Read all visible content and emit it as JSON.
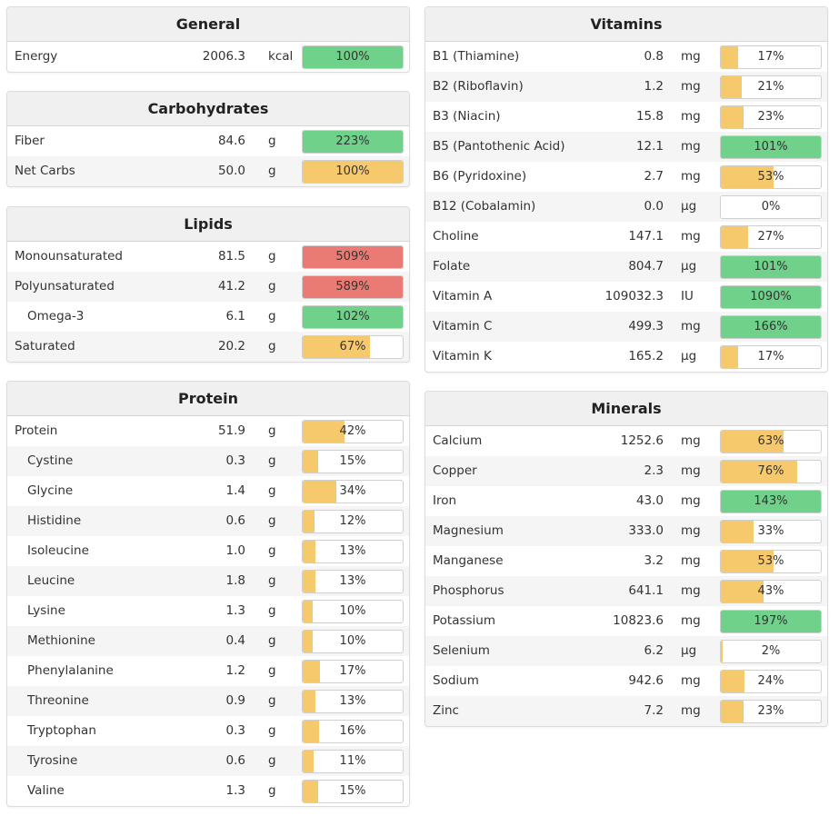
{
  "colors": {
    "green": "#6fd18a",
    "yellow": "#f7c96d",
    "red": "#ea7b74"
  },
  "general": {
    "title": "General",
    "rows": [
      {
        "name": "Energy",
        "amount": "2006.3",
        "unit": "kcal",
        "pct_label": "100%",
        "fill": 1.0,
        "color": "green"
      }
    ]
  },
  "carbohydrates": {
    "title": "Carbohydrates",
    "rows": [
      {
        "name": "Fiber",
        "amount": "84.6",
        "unit": "g",
        "pct_label": "223%",
        "fill": 1.0,
        "color": "green"
      },
      {
        "name": "Net Carbs",
        "amount": "50.0",
        "unit": "g",
        "pct_label": "100%",
        "fill": 1.0,
        "color": "yellow"
      }
    ]
  },
  "lipids": {
    "title": "Lipids",
    "rows": [
      {
        "name": "Monounsaturated",
        "amount": "81.5",
        "unit": "g",
        "pct_label": "509%",
        "fill": 1.0,
        "color": "red"
      },
      {
        "name": "Polyunsaturated",
        "amount": "41.2",
        "unit": "g",
        "pct_label": "589%",
        "fill": 1.0,
        "color": "red"
      },
      {
        "name": "Omega-3",
        "amount": "6.1",
        "unit": "g",
        "pct_label": "102%",
        "fill": 1.0,
        "color": "green",
        "indent": true
      },
      {
        "name": "Saturated",
        "amount": "20.2",
        "unit": "g",
        "pct_label": "67%",
        "fill": 0.67,
        "color": "yellow"
      }
    ]
  },
  "protein": {
    "title": "Protein",
    "rows": [
      {
        "name": "Protein",
        "amount": "51.9",
        "unit": "g",
        "pct_label": "42%",
        "fill": 0.42,
        "color": "yellow"
      },
      {
        "name": "Cystine",
        "amount": "0.3",
        "unit": "g",
        "pct_label": "15%",
        "fill": 0.15,
        "color": "yellow",
        "indent": true
      },
      {
        "name": "Glycine",
        "amount": "1.4",
        "unit": "g",
        "pct_label": "34%",
        "fill": 0.34,
        "color": "yellow",
        "indent": true
      },
      {
        "name": "Histidine",
        "amount": "0.6",
        "unit": "g",
        "pct_label": "12%",
        "fill": 0.12,
        "color": "yellow",
        "indent": true
      },
      {
        "name": "Isoleucine",
        "amount": "1.0",
        "unit": "g",
        "pct_label": "13%",
        "fill": 0.13,
        "color": "yellow",
        "indent": true
      },
      {
        "name": "Leucine",
        "amount": "1.8",
        "unit": "g",
        "pct_label": "13%",
        "fill": 0.13,
        "color": "yellow",
        "indent": true
      },
      {
        "name": "Lysine",
        "amount": "1.3",
        "unit": "g",
        "pct_label": "10%",
        "fill": 0.1,
        "color": "yellow",
        "indent": true
      },
      {
        "name": "Methionine",
        "amount": "0.4",
        "unit": "g",
        "pct_label": "10%",
        "fill": 0.1,
        "color": "yellow",
        "indent": true
      },
      {
        "name": "Phenylalanine",
        "amount": "1.2",
        "unit": "g",
        "pct_label": "17%",
        "fill": 0.17,
        "color": "yellow",
        "indent": true
      },
      {
        "name": "Threonine",
        "amount": "0.9",
        "unit": "g",
        "pct_label": "13%",
        "fill": 0.13,
        "color": "yellow",
        "indent": true
      },
      {
        "name": "Tryptophan",
        "amount": "0.3",
        "unit": "g",
        "pct_label": "16%",
        "fill": 0.16,
        "color": "yellow",
        "indent": true
      },
      {
        "name": "Tyrosine",
        "amount": "0.6",
        "unit": "g",
        "pct_label": "11%",
        "fill": 0.11,
        "color": "yellow",
        "indent": true
      },
      {
        "name": "Valine",
        "amount": "1.3",
        "unit": "g",
        "pct_label": "15%",
        "fill": 0.15,
        "color": "yellow",
        "indent": true
      }
    ]
  },
  "vitamins": {
    "title": "Vitamins",
    "rows": [
      {
        "name": "B1 (Thiamine)",
        "amount": "0.8",
        "unit": "mg",
        "pct_label": "17%",
        "fill": 0.17,
        "color": "yellow"
      },
      {
        "name": "B2 (Riboflavin)",
        "amount": "1.2",
        "unit": "mg",
        "pct_label": "21%",
        "fill": 0.21,
        "color": "yellow"
      },
      {
        "name": "B3 (Niacin)",
        "amount": "15.8",
        "unit": "mg",
        "pct_label": "23%",
        "fill": 0.23,
        "color": "yellow"
      },
      {
        "name": "B5 (Pantothenic Acid)",
        "amount": "12.1",
        "unit": "mg",
        "pct_label": "101%",
        "fill": 1.0,
        "color": "green"
      },
      {
        "name": "B6 (Pyridoxine)",
        "amount": "2.7",
        "unit": "mg",
        "pct_label": "53%",
        "fill": 0.53,
        "color": "yellow"
      },
      {
        "name": "B12 (Cobalamin)",
        "amount": "0.0",
        "unit": "µg",
        "pct_label": "0%",
        "fill": 0.0,
        "color": "yellow"
      },
      {
        "name": "Choline",
        "amount": "147.1",
        "unit": "mg",
        "pct_label": "27%",
        "fill": 0.27,
        "color": "yellow"
      },
      {
        "name": "Folate",
        "amount": "804.7",
        "unit": "µg",
        "pct_label": "101%",
        "fill": 1.0,
        "color": "green"
      },
      {
        "name": "Vitamin A",
        "amount": "109032.3",
        "unit": "IU",
        "pct_label": "1090%",
        "fill": 1.0,
        "color": "green"
      },
      {
        "name": "Vitamin C",
        "amount": "499.3",
        "unit": "mg",
        "pct_label": "166%",
        "fill": 1.0,
        "color": "green"
      },
      {
        "name": "Vitamin K",
        "amount": "165.2",
        "unit": "µg",
        "pct_label": "17%",
        "fill": 0.17,
        "color": "yellow"
      }
    ]
  },
  "minerals": {
    "title": "Minerals",
    "rows": [
      {
        "name": "Calcium",
        "amount": "1252.6",
        "unit": "mg",
        "pct_label": "63%",
        "fill": 0.63,
        "color": "yellow"
      },
      {
        "name": "Copper",
        "amount": "2.3",
        "unit": "mg",
        "pct_label": "76%",
        "fill": 0.76,
        "color": "yellow"
      },
      {
        "name": "Iron",
        "amount": "43.0",
        "unit": "mg",
        "pct_label": "143%",
        "fill": 1.0,
        "color": "green"
      },
      {
        "name": "Magnesium",
        "amount": "333.0",
        "unit": "mg",
        "pct_label": "33%",
        "fill": 0.33,
        "color": "yellow"
      },
      {
        "name": "Manganese",
        "amount": "3.2",
        "unit": "mg",
        "pct_label": "53%",
        "fill": 0.53,
        "color": "yellow"
      },
      {
        "name": "Phosphorus",
        "amount": "641.1",
        "unit": "mg",
        "pct_label": "43%",
        "fill": 0.43,
        "color": "yellow"
      },
      {
        "name": "Potassium",
        "amount": "10823.6",
        "unit": "mg",
        "pct_label": "197%",
        "fill": 1.0,
        "color": "green"
      },
      {
        "name": "Selenium",
        "amount": "6.2",
        "unit": "µg",
        "pct_label": "2%",
        "fill": 0.02,
        "color": "yellow"
      },
      {
        "name": "Sodium",
        "amount": "942.6",
        "unit": "mg",
        "pct_label": "24%",
        "fill": 0.24,
        "color": "yellow"
      },
      {
        "name": "Zinc",
        "amount": "7.2",
        "unit": "mg",
        "pct_label": "23%",
        "fill": 0.23,
        "color": "yellow"
      }
    ]
  }
}
